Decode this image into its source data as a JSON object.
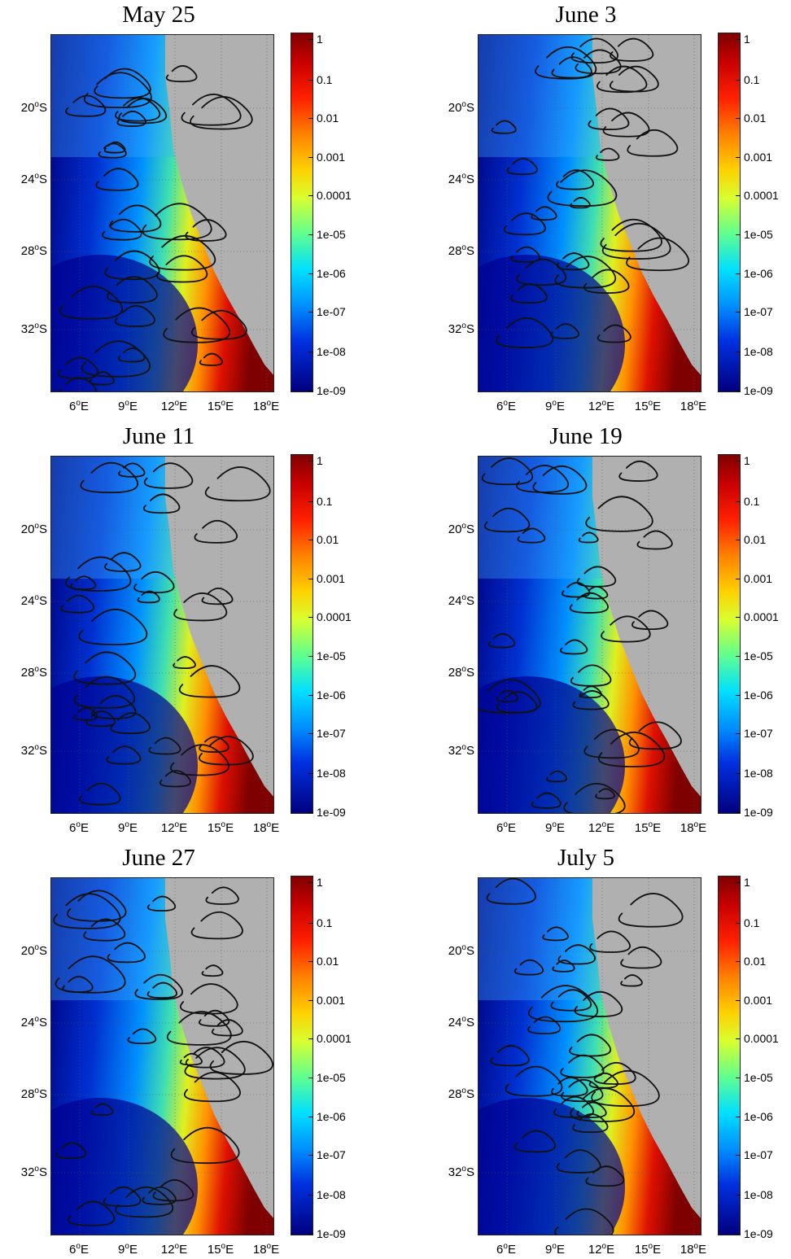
{
  "colors": {
    "land": "#b0b0b0",
    "contour": "#111111",
    "colormap": [
      "#7f0000",
      "#c80000",
      "#ff2000",
      "#ff8000",
      "#ffd000",
      "#d8ff30",
      "#60ff90",
      "#00e0ff",
      "#0090ff",
      "#0030e0",
      "#00007f"
    ]
  },
  "lat_labels": [
    "20",
    "24",
    "28",
    "32"
  ],
  "lat_suffix": "S",
  "lon_labels": [
    "6",
    "9",
    "12",
    "15",
    "18"
  ],
  "lon_suffix": "E",
  "degree_mark": "o",
  "colorbar_labels": [
    "1",
    "0.1",
    "0.01",
    "0.001",
    "0.0001",
    "1e-05",
    "1e-06",
    "1e-07",
    "1e-08",
    "1e-09"
  ],
  "panels": [
    {
      "title": "May 25"
    },
    {
      "title": "June 3"
    },
    {
      "title": "June 11"
    },
    {
      "title": "June 19"
    },
    {
      "title": "June 27"
    },
    {
      "title": "July 5"
    }
  ]
}
